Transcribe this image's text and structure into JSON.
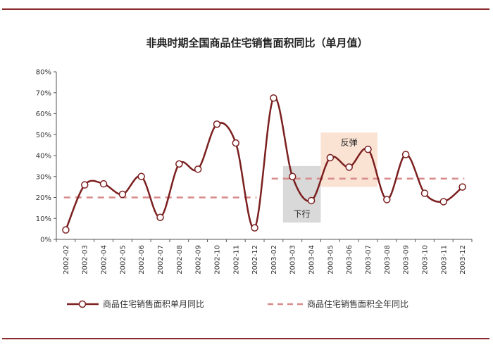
{
  "chart_data": {
    "type": "line",
    "title": "非典时期全国商品住宅销售面积同比（单月值）",
    "xlabel": "",
    "ylabel": "",
    "ylim": [
      0,
      80
    ],
    "yticks": [
      "0%",
      "10%",
      "20%",
      "30%",
      "40%",
      "50%",
      "60%",
      "70%",
      "80%"
    ],
    "grid": false,
    "legend_position": "bottom",
    "categories": [
      "2002-02",
      "2002-03",
      "2002-04",
      "2002-05",
      "2002-06",
      "2002-07",
      "2002-08",
      "2002-09",
      "2002-10",
      "2002-11",
      "2002-12",
      "2003-02",
      "2003-03",
      "2003-04",
      "2003-05",
      "2003-06",
      "2003-07",
      "2003-08",
      "2003-09",
      "2003-10",
      "2003-11",
      "2003-12"
    ],
    "series": [
      {
        "name": "商品住宅销售面积单月同比",
        "style": "solid-line-with-open-circles",
        "color": "#7b1f1f",
        "values": [
          4.5,
          26,
          26.5,
          21.5,
          30,
          10.5,
          36,
          33.5,
          55,
          46,
          5.5,
          67.5,
          30,
          18.5,
          39,
          34.5,
          43,
          19,
          40.5,
          22,
          18,
          25
        ]
      },
      {
        "name": "商品住宅销售面积全年同比",
        "style": "dashed",
        "color": "#d98a8a",
        "segments": [
          {
            "from": "2002-02",
            "to": "2002-12",
            "value": 20
          },
          {
            "from": "2003-02",
            "to": "2003-12",
            "value": 29
          }
        ]
      }
    ],
    "annotations": [
      {
        "label": "下行",
        "from": "2003-03",
        "to": "2003-04",
        "color": "#d9d9d9",
        "ymin": 8,
        "ymax": 35
      },
      {
        "label": "反弹",
        "from": "2003-05",
        "to": "2003-07",
        "color": "#fbe3d3",
        "ymin": 25,
        "ymax": 51
      }
    ]
  }
}
